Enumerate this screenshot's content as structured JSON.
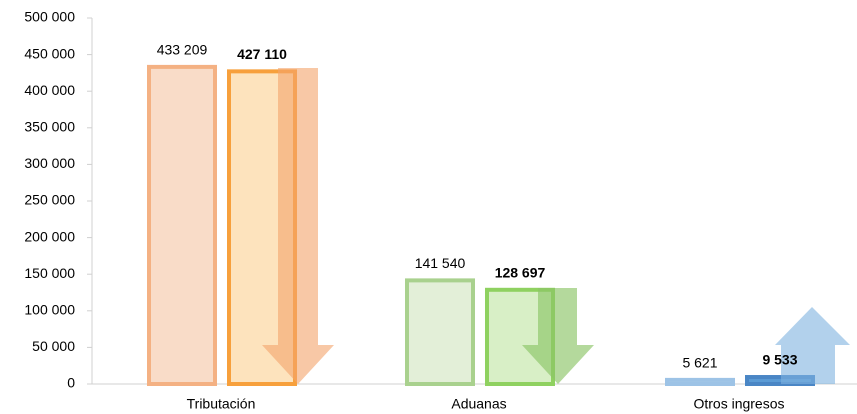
{
  "chart_data": {
    "type": "bar",
    "categories": [
      "Tributación",
      "Aduanas",
      "Otros ingresos"
    ],
    "series": [
      {
        "colors": [
          "#f9dcc8",
          "#e3efd8",
          "#bdd7ee"
        ],
        "strokes": [
          "#f4b183",
          "#a9d18e",
          "#9dc3e6"
        ],
        "values": [
          433209,
          141540,
          5621
        ],
        "value_labels": [
          "433 209",
          "141 540",
          "5 621"
        ]
      },
      {
        "colors": [
          "#fde3bd",
          "#d8efc6",
          "#5b9bd5"
        ],
        "strokes": [
          "#f7a03c",
          "#8fd160",
          "#4a86c5"
        ],
        "values": [
          427110,
          128697,
          9533
        ],
        "value_labels": [
          "427 110",
          "128 697",
          "9 533"
        ]
      }
    ],
    "ylim": [
      0,
      500000
    ],
    "yticks": [
      {
        "value": 0,
        "label": "0"
      },
      {
        "value": 50000,
        "label": "50 000"
      },
      {
        "value": 100000,
        "label": "100 000"
      },
      {
        "value": 150000,
        "label": "150 000"
      },
      {
        "value": 200000,
        "label": "200 000"
      },
      {
        "value": 250000,
        "label": "250 000"
      },
      {
        "value": 300000,
        "label": "300 000"
      },
      {
        "value": 350000,
        "label": "350 000"
      },
      {
        "value": 400000,
        "label": "400 000"
      },
      {
        "value": 450000,
        "label": "450 000"
      },
      {
        "value": 500000,
        "label": "500 000"
      }
    ]
  }
}
